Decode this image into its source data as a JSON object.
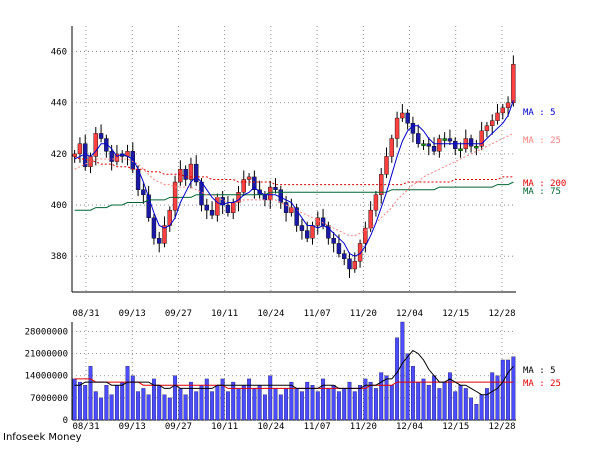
{
  "credit": "Infoseek Money",
  "chart_data": [
    {
      "type": "candlestick",
      "x_tick_labels": [
        "08/31",
        "09/13",
        "09/27",
        "10/11",
        "10/24",
        "11/07",
        "11/20",
        "12/04",
        "12/15",
        "12/28"
      ],
      "ylim": [
        366,
        470
      ],
      "y_ticks": [
        380,
        400,
        420,
        440,
        460
      ],
      "grid": true,
      "legend": [
        {
          "label": "MA : 5",
          "color": "#0000cc"
        },
        {
          "label": "MA : 25",
          "color": "#ff8080"
        },
        {
          "label": "MA : 200",
          "color": "#dd0000"
        },
        {
          "label": "MA : 75",
          "color": "#006633"
        }
      ],
      "colors": {
        "up": "#ff4040",
        "down": "#1a1aa6",
        "doji": "#009900",
        "wick": "#000000"
      },
      "close": [
        420,
        424,
        415,
        419,
        428,
        426,
        421,
        417,
        420,
        419,
        421,
        414,
        406,
        404,
        395,
        387,
        385,
        392,
        398,
        409,
        414,
        410,
        416,
        409,
        400,
        398,
        396,
        403,
        400,
        397,
        401,
        405,
        410,
        411,
        406,
        404,
        402,
        407,
        406,
        401,
        397,
        399,
        392,
        390,
        387,
        392,
        395,
        392,
        387,
        385,
        381,
        379,
        375,
        378,
        385,
        391,
        398,
        404,
        412,
        419,
        426,
        434,
        436,
        432,
        428,
        424,
        424,
        423,
        421,
        426,
        426,
        425,
        422,
        422,
        426,
        423,
        423,
        429,
        431,
        433,
        436,
        438,
        440,
        455
      ],
      "ma_5": [
        418,
        419,
        420,
        419,
        421,
        424,
        424,
        422,
        419,
        420,
        419,
        418,
        414,
        409,
        403,
        397,
        392,
        391,
        392,
        395,
        401,
        405,
        409,
        411,
        409,
        406,
        403,
        401,
        400,
        401,
        401,
        402,
        404,
        405,
        407,
        405,
        404,
        404,
        404,
        403,
        402,
        401,
        398,
        395,
        392,
        392,
        391,
        392,
        391,
        389,
        387,
        385,
        381,
        380,
        381,
        384,
        388,
        393,
        399,
        405,
        412,
        419,
        425,
        429,
        431,
        431,
        429,
        426,
        424,
        424,
        424,
        424,
        424,
        424,
        424,
        424,
        424,
        424,
        426,
        428,
        430,
        432,
        435,
        441
      ],
      "ma_25": [
        414,
        415,
        416,
        417,
        418,
        418,
        418,
        418,
        418,
        418,
        418,
        417,
        416,
        414,
        412,
        410,
        409,
        408,
        408,
        407,
        407,
        407,
        407,
        406,
        405,
        404,
        404,
        403,
        402,
        401,
        401,
        401,
        402,
        402,
        402,
        402,
        402,
        402,
        402,
        401,
        400,
        399,
        398,
        397,
        396,
        395,
        394,
        393,
        392,
        391,
        390,
        389,
        388,
        388,
        389,
        390,
        391,
        393,
        395,
        397,
        399,
        402,
        404,
        406,
        408,
        409,
        411,
        412,
        413,
        414,
        415,
        416,
        417,
        418,
        419,
        420,
        421,
        422,
        423,
        424,
        425,
        426,
        427,
        428
      ],
      "ma_75": [
        398,
        398,
        398,
        398,
        399,
        399,
        399,
        400,
        400,
        400,
        401,
        401,
        401,
        401,
        402,
        402,
        402,
        402,
        403,
        403,
        403,
        403,
        403,
        404,
        404,
        404,
        404,
        404,
        404,
        404,
        404,
        404,
        404,
        404,
        404,
        404,
        404,
        405,
        405,
        405,
        405,
        405,
        405,
        405,
        405,
        405,
        405,
        405,
        405,
        405,
        405,
        405,
        405,
        405,
        405,
        405,
        405,
        405,
        405,
        405,
        406,
        406,
        406,
        406,
        406,
        406,
        406,
        406,
        406,
        407,
        407,
        407,
        407,
        407,
        407,
        407,
        407,
        407,
        407,
        407,
        408,
        408,
        408,
        409
      ],
      "ma_200": [
        419,
        418,
        418,
        417,
        417,
        416,
        416,
        416,
        415,
        415,
        415,
        414,
        414,
        414,
        413,
        413,
        413,
        412,
        412,
        412,
        412,
        411,
        411,
        411,
        411,
        411,
        410,
        410,
        410,
        410,
        410,
        409,
        409,
        409,
        409,
        409,
        409,
        409,
        408,
        408,
        408,
        408,
        408,
        408,
        408,
        408,
        408,
        408,
        408,
        408,
        408,
        408,
        408,
        408,
        408,
        408,
        408,
        408,
        408,
        408,
        408,
        408,
        408,
        409,
        409,
        409,
        409,
        409,
        409,
        409,
        409,
        409,
        410,
        410,
        410,
        410,
        410,
        410,
        410,
        410,
        410,
        411,
        411,
        411
      ]
    },
    {
      "type": "bar",
      "y_tick_labels": [
        "28000000",
        "21000000",
        "14000000",
        "7000000",
        "0"
      ],
      "ylim": [
        0,
        31000000
      ],
      "legend": [
        {
          "label": "MA : 5",
          "color": "#000000"
        },
        {
          "label": "MA : 25",
          "color": "#dd0000"
        }
      ],
      "bar_color": "#4b4bff",
      "values": [
        13,
        12,
        11,
        17,
        9,
        7,
        11,
        8,
        11,
        12,
        17,
        14,
        9,
        10,
        8,
        13,
        11,
        8,
        7,
        14,
        10,
        8,
        12,
        9,
        11,
        13,
        9,
        11,
        13,
        9,
        12,
        10,
        11,
        13,
        10,
        11,
        8,
        14,
        10,
        8,
        10,
        12,
        10,
        9,
        12,
        11,
        9,
        13,
        10,
        11,
        9,
        10,
        12,
        9,
        11,
        13,
        12,
        10,
        15,
        14,
        11,
        26,
        31,
        21,
        17,
        12,
        13,
        11,
        14,
        10,
        12,
        15,
        9,
        11,
        10,
        7,
        5,
        8,
        10,
        15,
        14,
        19,
        19,
        20
      ],
      "ma_5": [
        11,
        11,
        12,
        12,
        12,
        12,
        12,
        11,
        11,
        11,
        12,
        12,
        12,
        12,
        12,
        11,
        11,
        10,
        10,
        11,
        10,
        10,
        10,
        10,
        10,
        10,
        10,
        11,
        11,
        11,
        11,
        11,
        11,
        11,
        11,
        11,
        11,
        11,
        11,
        11,
        11,
        11,
        10,
        10,
        10,
        10,
        10,
        11,
        11,
        11,
        10,
        10,
        10,
        10,
        10,
        11,
        11,
        11,
        12,
        13,
        13,
        15,
        18,
        20,
        22,
        21,
        19,
        16,
        14,
        12,
        12,
        13,
        12,
        11,
        11,
        10,
        9,
        8,
        8,
        9,
        10,
        12,
        15,
        17
      ],
      "ma_25": [
        13,
        13,
        13,
        13,
        12,
        12,
        12,
        12,
        12,
        12,
        12,
        12,
        12,
        11,
        11,
        11,
        11,
        11,
        11,
        11,
        11,
        11,
        11,
        11,
        11,
        11,
        11,
        11,
        11,
        10,
        10,
        10,
        10,
        10,
        10,
        10,
        10,
        10,
        10,
        10,
        10,
        10,
        10,
        10,
        10,
        10,
        10,
        10,
        10,
        10,
        10,
        10,
        10,
        10,
        10,
        10,
        11,
        11,
        11,
        11,
        11,
        12,
        12,
        12,
        12,
        12,
        12,
        12,
        12,
        12,
        12,
        12,
        12,
        12,
        12,
        12,
        12,
        12,
        12,
        12,
        12,
        12,
        12,
        12
      ]
    }
  ]
}
